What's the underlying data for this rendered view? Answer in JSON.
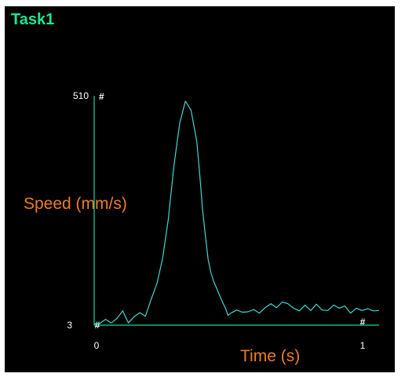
{
  "app": {
    "title": "Task1"
  },
  "chart_data": {
    "type": "line",
    "title": "Task1",
    "xlabel": "Time (s)",
    "ylabel": "Speed (mm/s)",
    "xlim": [
      0,
      1
    ],
    "ylim": [
      3,
      510
    ],
    "x_ticks": [
      "0",
      "1"
    ],
    "y_ticks": [
      "3",
      "510"
    ],
    "marker_glyph": "#",
    "colors": {
      "background": "#000000",
      "axis": "#19d79c",
      "line": "#3fd8d0",
      "title": "#19e890",
      "label": "#ee7d22",
      "tick": "#ffffff"
    },
    "series": [
      {
        "x": [
          0.0,
          0.02,
          0.04,
          0.06,
          0.08,
          0.1,
          0.12,
          0.14,
          0.16,
          0.18,
          0.2,
          0.22,
          0.24,
          0.26,
          0.28,
          0.3,
          0.32,
          0.34,
          0.36,
          0.37,
          0.38,
          0.39,
          0.4,
          0.41,
          0.42,
          0.43,
          0.44,
          0.45,
          0.46,
          0.47,
          0.48,
          0.5,
          0.52,
          0.54,
          0.56,
          0.58,
          0.6,
          0.62,
          0.64,
          0.66,
          0.68,
          0.7,
          0.72,
          0.74,
          0.76,
          0.78,
          0.8,
          0.82,
          0.84,
          0.86,
          0.88,
          0.9,
          0.92,
          0.94,
          0.96,
          0.98,
          1.0
        ],
        "y": [
          6,
          7,
          16,
          8,
          18,
          35,
          8,
          22,
          31,
          23,
          61,
          96,
          152,
          240,
          360,
          455,
          505,
          485,
          415,
          345,
          265,
          205,
          150,
          120,
          100,
          85,
          70,
          55,
          42,
          25,
          30,
          37,
          32,
          33,
          38,
          30,
          42,
          51,
          42,
          55,
          51,
          41,
          35,
          48,
          36,
          50,
          37,
          36,
          48,
          41,
          46,
          30,
          41,
          36,
          40,
          35,
          36
        ]
      }
    ]
  }
}
